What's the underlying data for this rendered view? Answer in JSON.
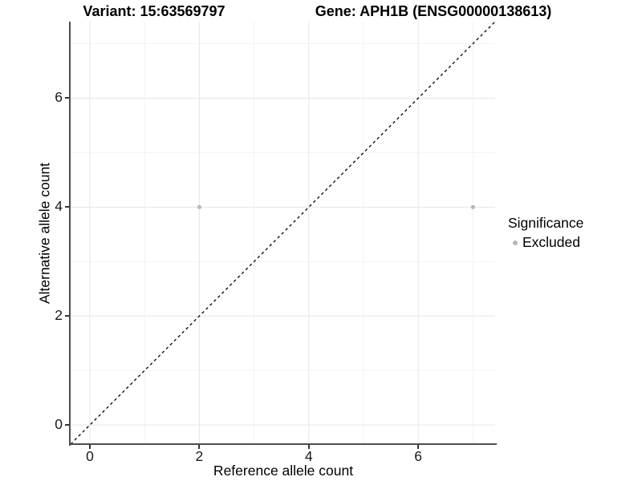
{
  "chart_data": {
    "type": "scatter",
    "title_left": "Variant: 15:63569797",
    "title_right": "Gene: APH1B (ENSG00000138613)",
    "xlabel": "Reference allele count",
    "ylabel": "Alternative allele count",
    "xlim": [
      -0.352,
      7.405
    ],
    "ylim": [
      -0.352,
      7.405
    ],
    "x_ticks": [
      0,
      2,
      4,
      6
    ],
    "y_ticks": [
      0,
      2,
      4,
      6
    ],
    "x_minor_gridlines": [
      1,
      3,
      5,
      7
    ],
    "y_minor_gridlines": [
      1,
      3,
      5,
      7
    ],
    "grid": "major+minor",
    "legend_position": "right",
    "series": [
      {
        "name": "Excluded",
        "color": "#b7b7b7",
        "points": [
          {
            "x": 2,
            "y": 4
          },
          {
            "x": 7,
            "y": 4
          }
        ]
      }
    ],
    "reference_line": {
      "description": "identity line y = x",
      "style": "dashed",
      "color": "#000000"
    },
    "legend": {
      "title": "Significance",
      "entries": [
        {
          "label": "Excluded",
          "color": "#b7b7b7"
        }
      ]
    }
  },
  "colors": {
    "background": "#ffffff",
    "axis_line": "#4d4d4d",
    "tick_mark": "#333333",
    "major_gridline": "#e6e6e6",
    "minor_gridline": "#f3f3f3",
    "point": "#b7b7b7"
  }
}
